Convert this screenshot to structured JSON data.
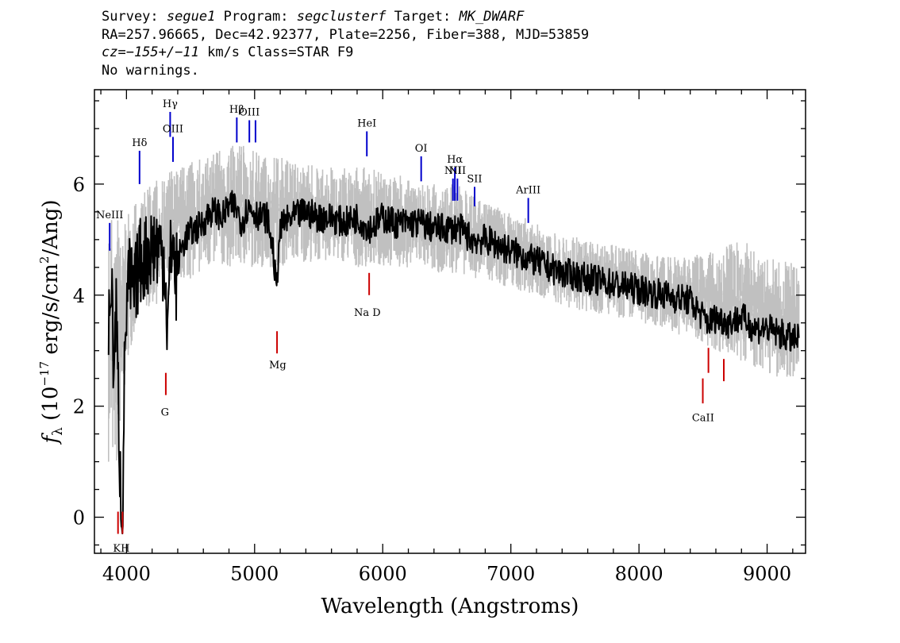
{
  "header": {
    "survey_label": "Survey:",
    "survey": "segue1",
    "program_label": "Program:",
    "program": "segclusterf",
    "target_label": "Target:",
    "target": "MK_DWARF",
    "line2": "RA=257.96665, Dec=42.92377, Plate=2256, Fiber=388, MJD=53859",
    "cz_label": "cz=",
    "cz_value": "−155+/−11",
    "cz_rest": " km/s Class=STAR F9",
    "warnings": "No warnings."
  },
  "chart_data": {
    "type": "line",
    "xlabel": "Wavelength (Angstroms)",
    "ylabel_parts": {
      "f": "f",
      "sub": "λ",
      "open": " (10",
      "exp": "−17",
      "mid": " erg/s/cm",
      "exp2": "2",
      "close": "/Ang)"
    },
    "xlim": [
      3750,
      9300
    ],
    "ylim": [
      -0.65,
      7.7
    ],
    "x_ticks": [
      4000,
      5000,
      6000,
      7000,
      8000,
      9000
    ],
    "y_ticks": [
      0,
      2,
      4,
      6
    ],
    "grid": false,
    "series": [
      {
        "role": "spectrum",
        "color": "#000000",
        "x": [
          3860,
          3880,
          3900,
          3920,
          3940,
          3950,
          3960,
          3970,
          3990,
          4020,
          4060,
          4100,
          4150,
          4200,
          4250,
          4300,
          4320,
          4340,
          4360,
          4380,
          4420,
          4480,
          4550,
          4600,
          4650,
          4700,
          4750,
          4800,
          4850,
          4870,
          4900,
          4950,
          5000,
          5050,
          5100,
          5150,
          5170,
          5190,
          5220,
          5300,
          5400,
          5500,
          5600,
          5700,
          5800,
          5890,
          5950,
          6000,
          6100,
          6200,
          6300,
          6400,
          6500,
          6600,
          6700,
          6800,
          6900,
          7000,
          7100,
          7200,
          7400,
          7600,
          7800,
          8000,
          8200,
          8400,
          8500,
          8550,
          8600,
          8700,
          8800,
          8900,
          9000,
          9100,
          9200,
          9250
        ],
        "y": [
          3.2,
          4.4,
          2.7,
          3.7,
          1.8,
          0.8,
          0.3,
          0.2,
          3.4,
          4.3,
          4.0,
          4.6,
          4.7,
          4.9,
          4.9,
          4.6,
          3.3,
          4.5,
          5.2,
          4.2,
          4.8,
          5.1,
          5.2,
          5.3,
          5.5,
          5.5,
          5.4,
          5.6,
          5.6,
          5.5,
          5.3,
          5.6,
          5.5,
          5.4,
          5.4,
          4.7,
          4.0,
          5.0,
          5.3,
          5.4,
          5.5,
          5.4,
          5.4,
          5.3,
          5.4,
          5.2,
          5.3,
          5.4,
          5.3,
          5.3,
          5.3,
          5.2,
          5.2,
          5.2,
          5.0,
          5.0,
          4.9,
          4.8,
          4.7,
          4.6,
          4.4,
          4.3,
          4.2,
          4.1,
          4.0,
          3.9,
          3.6,
          3.5,
          3.6,
          3.5,
          3.6,
          3.4,
          3.4,
          3.3,
          3.2,
          3.2
        ]
      },
      {
        "role": "noise",
        "color": "#c0c0c0",
        "x": [
          3860,
          3950,
          4000,
          4100,
          4200,
          4300,
          4400,
          4500,
          4600,
          4700,
          4800,
          4900,
          5000,
          5100,
          5200,
          5300,
          5400,
          5500,
          5600,
          5700,
          5800,
          5900,
          6000,
          6100,
          6200,
          6300,
          6400,
          6500,
          6600,
          6700,
          6800,
          6900,
          7000,
          7200,
          7400,
          7600,
          7800,
          8000,
          8200,
          8400,
          8600,
          8800,
          9000,
          9200,
          9250
        ],
        "y_low": [
          1.0,
          0.8,
          2.8,
          3.6,
          3.8,
          3.9,
          4.2,
          4.3,
          4.4,
          4.5,
          4.5,
          4.5,
          4.5,
          4.5,
          4.5,
          4.6,
          4.6,
          4.6,
          4.6,
          4.6,
          4.5,
          4.5,
          4.5,
          4.5,
          4.5,
          4.5,
          4.4,
          4.4,
          4.4,
          4.3,
          4.3,
          4.2,
          4.1,
          4.0,
          3.8,
          3.7,
          3.6,
          3.5,
          3.4,
          3.2,
          3.0,
          2.8,
          2.6,
          2.4,
          2.3
        ],
        "y_high": [
          5.5,
          5.5,
          5.4,
          5.8,
          6.0,
          6.2,
          6.3,
          6.4,
          6.5,
          6.6,
          6.7,
          6.7,
          6.6,
          6.5,
          6.5,
          6.4,
          6.4,
          6.3,
          6.3,
          6.3,
          6.3,
          6.3,
          6.2,
          6.2,
          6.1,
          6.1,
          6.0,
          6.0,
          6.0,
          5.8,
          5.7,
          5.6,
          5.5,
          5.3,
          5.1,
          5.0,
          4.9,
          4.8,
          4.7,
          4.7,
          4.8,
          5.0,
          4.7,
          4.6,
          4.5
        ]
      }
    ],
    "emission_lines": [
      {
        "label": "NeIII",
        "x": 3869,
        "y0": 4.8,
        "y1": 5.3,
        "color": "#0000cc"
      },
      {
        "label": "Hδ",
        "x": 4102,
        "y0": 6.0,
        "y1": 6.6,
        "color": "#0000cc"
      },
      {
        "label": "Hγ",
        "x": 4341,
        "y0": 6.85,
        "y1": 7.3,
        "color": "#0000cc"
      },
      {
        "label": "OIII",
        "x": 4363,
        "y0": 6.4,
        "y1": 6.85,
        "color": "#0000cc"
      },
      {
        "label": "Hβ",
        "x": 4861,
        "y0": 6.75,
        "y1": 7.2,
        "color": "#0000cc"
      },
      {
        "label": "OIII",
        "x": 4959,
        "y0": 6.75,
        "y1": 7.15,
        "color": "#0000cc"
      },
      {
        "label": "",
        "x": 5007,
        "y0": 6.75,
        "y1": 7.15,
        "color": "#0000cc"
      },
      {
        "label": "HeI",
        "x": 5876,
        "y0": 6.5,
        "y1": 6.95,
        "color": "#0000cc"
      },
      {
        "label": "OI",
        "x": 6300,
        "y0": 6.05,
        "y1": 6.5,
        "color": "#0000cc"
      },
      {
        "label": "NII",
        "x": 6548,
        "y0": 5.7,
        "y1": 6.1,
        "color": "#0000cc"
      },
      {
        "label": "Hα",
        "x": 6563,
        "y0": 5.7,
        "y1": 6.3,
        "color": "#0000cc"
      },
      {
        "label": "NII",
        "x": 6583,
        "y0": 5.7,
        "y1": 6.1,
        "color": "#0000cc"
      },
      {
        "label": "SII",
        "x": 6717,
        "y0": 5.6,
        "y1": 5.95,
        "color": "#0000cc"
      },
      {
        "label": "ArIII",
        "x": 7136,
        "y0": 5.3,
        "y1": 5.75,
        "color": "#0000cc"
      }
    ],
    "absorption_lines": [
      {
        "label": "K",
        "x": 3934,
        "y0": -0.3,
        "y1": 0.1,
        "color": "#cc0000"
      },
      {
        "label": "H",
        "x": 3969,
        "y0": -0.3,
        "y1": 0.1,
        "color": "#cc0000"
      },
      {
        "label": "G",
        "x": 4307,
        "y0": 2.2,
        "y1": 2.6,
        "color": "#cc0000"
      },
      {
        "label": "Mg",
        "x": 5175,
        "y0": 2.95,
        "y1": 3.35,
        "color": "#cc0000"
      },
      {
        "label": "Na",
        "x": 5894,
        "y0": 4.0,
        "y1": 4.4,
        "color": "#cc0000"
      },
      {
        "label": "CaII",
        "x": 8498,
        "y0": 2.05,
        "y1": 2.5,
        "color": "#cc0000"
      },
      {
        "label": "",
        "x": 8542,
        "y0": 2.6,
        "y1": 3.05,
        "color": "#cc0000"
      },
      {
        "label": "",
        "x": 8662,
        "y0": 2.45,
        "y1": 2.85,
        "color": "#cc0000"
      }
    ],
    "extra_labels": [
      {
        "text": "KH",
        "x": 3960,
        "y": -0.55
      },
      {
        "text": "G",
        "x": 4300,
        "y": 1.9
      },
      {
        "text": "Mg",
        "x": 5180,
        "y": 2.75
      },
      {
        "text": "Na  D",
        "x": 5880,
        "y": 3.7
      },
      {
        "text": "CaII",
        "x": 8500,
        "y": 1.8
      }
    ]
  }
}
